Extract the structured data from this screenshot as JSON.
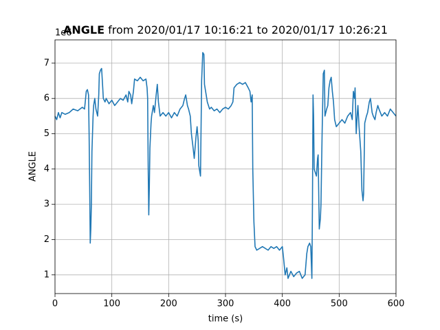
{
  "chart_data": {
    "type": "line",
    "title_var": "ANGLE",
    "title_range": "from 2020/01/17 10:16:21 to 2020/01/17 10:26:21",
    "y_offset_label": "1e6",
    "xlabel": "time (s)",
    "ylabel": "ANGLE",
    "xlim": [
      0,
      600
    ],
    "xticks": [
      0,
      100,
      200,
      300,
      400,
      500,
      600
    ],
    "ylim": [
      0.47,
      7.66
    ],
    "yticks": [
      1,
      2,
      3,
      4,
      5,
      6,
      7
    ],
    "grid": true,
    "x": [
      0,
      3,
      6,
      9,
      12,
      18,
      25,
      32,
      40,
      48,
      52,
      55,
      57,
      59,
      60,
      61,
      62,
      63,
      64,
      65,
      67,
      68,
      70,
      72,
      75,
      77,
      78,
      80,
      82,
      84,
      85,
      88,
      90,
      95,
      100,
      105,
      110,
      115,
      120,
      125,
      128,
      130,
      133,
      135,
      138,
      140,
      145,
      150,
      155,
      160,
      162,
      163,
      164,
      165,
      166,
      167,
      169,
      170,
      173,
      175,
      178,
      180,
      182,
      185,
      190,
      195,
      200,
      205,
      210,
      215,
      220,
      225,
      228,
      230,
      233,
      235,
      238,
      240,
      243,
      245,
      248,
      250,
      252,
      253,
      255,
      256,
      258,
      260,
      262,
      263,
      265,
      268,
      272,
      275,
      280,
      285,
      290,
      295,
      300,
      305,
      310,
      313,
      315,
      320,
      325,
      330,
      335,
      340,
      343,
      345,
      347,
      348,
      350,
      352,
      355,
      360,
      365,
      370,
      375,
      380,
      385,
      390,
      395,
      400,
      402,
      405,
      408,
      410,
      415,
      420,
      425,
      430,
      435,
      440,
      443,
      445,
      448,
      450,
      452,
      453,
      454,
      455,
      456,
      458,
      460,
      462,
      463,
      465,
      467,
      468,
      470,
      472,
      474,
      475,
      478,
      480,
      482,
      484,
      486,
      488,
      490,
      492,
      495,
      500,
      505,
      510,
      515,
      520,
      523,
      525,
      527,
      528,
      530,
      532,
      533,
      535,
      538,
      540,
      542,
      543,
      545,
      548,
      550,
      553,
      555,
      558,
      560,
      563,
      565,
      568,
      570,
      575,
      580,
      585,
      590,
      595,
      600
    ],
    "series": [
      {
        "name": "ANGLE",
        "color": "#1f77b4",
        "values": [
          5.5,
          5.4,
          5.6,
          5.45,
          5.6,
          5.55,
          5.6,
          5.7,
          5.65,
          5.75,
          5.7,
          6.2,
          6.25,
          6.1,
          5.0,
          3.5,
          1.9,
          2.3,
          3.0,
          4.5,
          5.5,
          5.8,
          6.0,
          5.7,
          5.5,
          6.1,
          6.7,
          6.8,
          6.85,
          6.3,
          6.0,
          5.9,
          6.0,
          5.85,
          5.95,
          5.8,
          5.9,
          6.0,
          5.95,
          6.1,
          5.9,
          6.2,
          6.1,
          5.85,
          6.2,
          6.55,
          6.5,
          6.6,
          6.5,
          6.55,
          6.3,
          6.0,
          4.0,
          2.7,
          3.5,
          4.6,
          5.3,
          5.5,
          5.8,
          5.6,
          6.1,
          6.4,
          5.9,
          5.5,
          5.6,
          5.5,
          5.6,
          5.45,
          5.6,
          5.5,
          5.7,
          5.8,
          6.0,
          6.1,
          5.8,
          5.7,
          5.5,
          5.0,
          4.6,
          4.3,
          4.9,
          5.2,
          4.8,
          4.1,
          3.9,
          3.8,
          6.5,
          7.3,
          7.25,
          6.4,
          6.2,
          5.9,
          5.7,
          5.75,
          5.65,
          5.7,
          5.6,
          5.7,
          5.75,
          5.7,
          5.8,
          5.9,
          6.3,
          6.4,
          6.45,
          6.4,
          6.45,
          6.3,
          6.2,
          5.9,
          6.1,
          4.0,
          2.5,
          1.8,
          1.7,
          1.75,
          1.8,
          1.75,
          1.7,
          1.8,
          1.75,
          1.8,
          1.7,
          1.8,
          1.5,
          1.0,
          1.2,
          0.9,
          1.1,
          0.95,
          1.05,
          1.1,
          0.9,
          1.0,
          1.6,
          1.8,
          1.9,
          1.8,
          0.9,
          3.0,
          6.1,
          5.5,
          4.0,
          3.9,
          3.8,
          4.3,
          4.4,
          2.3,
          2.6,
          3.0,
          5.0,
          6.7,
          6.8,
          5.5,
          5.7,
          5.8,
          6.3,
          6.5,
          6.6,
          6.2,
          5.9,
          5.4,
          5.2,
          5.3,
          5.4,
          5.3,
          5.5,
          5.6,
          5.4,
          6.2,
          6.0,
          6.3,
          5.0,
          5.6,
          5.8,
          5.2,
          4.5,
          3.4,
          3.1,
          3.3,
          5.3,
          5.5,
          5.6,
          5.9,
          6.0,
          5.6,
          5.5,
          5.4,
          5.6,
          5.8,
          5.7,
          5.5,
          5.6,
          5.5,
          5.7,
          5.6,
          5.5
        ]
      }
    ]
  }
}
